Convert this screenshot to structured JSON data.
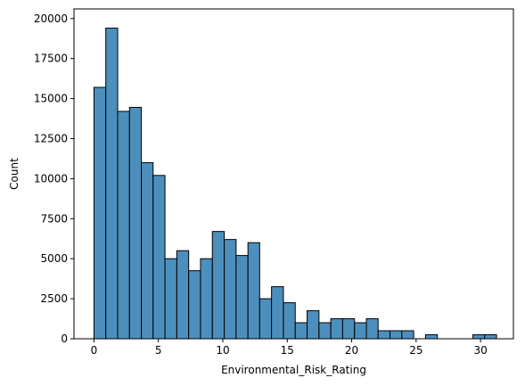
{
  "chart_data": {
    "type": "bar",
    "xlabel": "Environmental_Risk_Rating",
    "ylabel": "Count",
    "bar_color": "#4c8fbd",
    "edge_color": "#000000",
    "xlim": [
      -1.55,
      32.55
    ],
    "ylim": [
      0,
      20600
    ],
    "xticks": [
      0,
      5,
      10,
      15,
      20,
      25,
      30
    ],
    "yticks": [
      0,
      2500,
      5000,
      7500,
      10000,
      12500,
      15000,
      17500,
      20000
    ],
    "bins": [
      {
        "x0": 0.0,
        "x1": 0.92,
        "count": 15700
      },
      {
        "x0": 0.92,
        "x1": 1.84,
        "count": 19400
      },
      {
        "x0": 1.84,
        "x1": 2.76,
        "count": 14200
      },
      {
        "x0": 2.76,
        "x1": 3.68,
        "count": 14450
      },
      {
        "x0": 3.68,
        "x1": 4.59,
        "count": 11000
      },
      {
        "x0": 4.59,
        "x1": 5.51,
        "count": 10200
      },
      {
        "x0": 5.51,
        "x1": 6.43,
        "count": 5000
      },
      {
        "x0": 6.43,
        "x1": 7.35,
        "count": 5500
      },
      {
        "x0": 7.35,
        "x1": 8.27,
        "count": 4250
      },
      {
        "x0": 8.27,
        "x1": 9.19,
        "count": 5000
      },
      {
        "x0": 9.19,
        "x1": 10.11,
        "count": 6700
      },
      {
        "x0": 10.11,
        "x1": 11.03,
        "count": 6200
      },
      {
        "x0": 11.03,
        "x1": 11.95,
        "count": 5200
      },
      {
        "x0": 11.95,
        "x1": 12.86,
        "count": 6000
      },
      {
        "x0": 12.86,
        "x1": 13.78,
        "count": 2500
      },
      {
        "x0": 13.78,
        "x1": 14.7,
        "count": 3250
      },
      {
        "x0": 14.7,
        "x1": 15.62,
        "count": 2250
      },
      {
        "x0": 15.62,
        "x1": 16.54,
        "count": 1000
      },
      {
        "x0": 16.54,
        "x1": 17.46,
        "count": 1750
      },
      {
        "x0": 17.46,
        "x1": 18.38,
        "count": 1000
      },
      {
        "x0": 18.38,
        "x1": 19.3,
        "count": 1250
      },
      {
        "x0": 19.3,
        "x1": 20.22,
        "count": 1250
      },
      {
        "x0": 20.22,
        "x1": 21.14,
        "count": 1000
      },
      {
        "x0": 21.14,
        "x1": 22.05,
        "count": 1250
      },
      {
        "x0": 22.05,
        "x1": 22.97,
        "count": 500
      },
      {
        "x0": 22.97,
        "x1": 23.89,
        "count": 500
      },
      {
        "x0": 23.89,
        "x1": 24.81,
        "count": 500
      },
      {
        "x0": 24.81,
        "x1": 25.73,
        "count": 0
      },
      {
        "x0": 25.73,
        "x1": 26.65,
        "count": 250
      },
      {
        "x0": 26.65,
        "x1": 27.57,
        "count": 0
      },
      {
        "x0": 27.57,
        "x1": 28.49,
        "count": 0
      },
      {
        "x0": 28.49,
        "x1": 29.41,
        "count": 0
      },
      {
        "x0": 29.41,
        "x1": 30.32,
        "count": 250
      },
      {
        "x0": 30.32,
        "x1": 31.24,
        "count": 250
      }
    ]
  }
}
